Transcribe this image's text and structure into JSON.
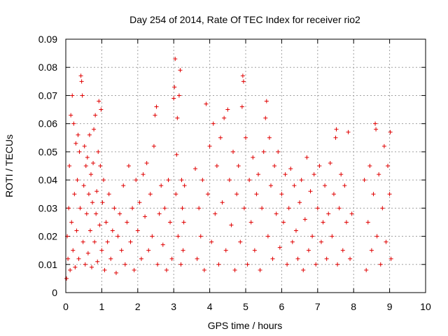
{
  "chart_data": {
    "type": "scatter",
    "title": "Day 254 of 2014, Rate Of TEC Index for receiver rio2",
    "xlabel": "GPS time / hours",
    "ylabel": "ROTI / TECUs",
    "xlim": [
      0,
      10
    ],
    "ylim": [
      0,
      0.09
    ],
    "x_ticks": [
      0,
      1,
      2,
      3,
      4,
      5,
      6,
      7,
      8,
      9,
      10
    ],
    "x_tick_labels": [
      "0",
      "1",
      "2",
      "3",
      "4",
      "5",
      "6",
      "7",
      "8",
      "9",
      "10"
    ],
    "y_ticks": [
      0,
      0.01,
      0.02,
      0.03,
      0.04,
      0.05,
      0.06,
      0.07,
      0.08,
      0.09
    ],
    "y_tick_labels": [
      "0",
      "0.01",
      "0.02",
      "0.03",
      "0.04",
      "0.05",
      "0.06",
      "0.07",
      "0.08",
      "0.09"
    ],
    "grid": true,
    "marker": "+",
    "color": "#e00000",
    "series": [
      {
        "name": "ROTI",
        "points": [
          [
            0.02,
            0.005
          ],
          [
            0.04,
            0.02
          ],
          [
            0.06,
            0.012
          ],
          [
            0.08,
            0.03
          ],
          [
            0.1,
            0.045
          ],
          [
            0.12,
            0.008
          ],
          [
            0.14,
            0.063
          ],
          [
            0.16,
            0.025
          ],
          [
            0.18,
            0.07
          ],
          [
            0.2,
            0.015
          ],
          [
            0.22,
            0.06
          ],
          [
            0.24,
            0.035
          ],
          [
            0.26,
            0.009
          ],
          [
            0.28,
            0.053
          ],
          [
            0.3,
            0.022
          ],
          [
            0.32,
            0.04
          ],
          [
            0.34,
            0.056
          ],
          [
            0.36,
            0.012
          ],
          [
            0.38,
            0.05
          ],
          [
            0.4,
            0.03
          ],
          [
            0.42,
            0.077
          ],
          [
            0.44,
            0.075
          ],
          [
            0.46,
            0.07
          ],
          [
            0.48,
            0.018
          ],
          [
            0.5,
            0.038
          ],
          [
            0.52,
            0.052
          ],
          [
            0.54,
            0.01
          ],
          [
            0.56,
            0.045
          ],
          [
            0.58,
            0.028
          ],
          [
            0.6,
            0.048
          ],
          [
            0.62,
            0.014
          ],
          [
            0.64,
            0.035
          ],
          [
            0.66,
            0.056
          ],
          [
            0.68,
            0.022
          ],
          [
            0.7,
            0.042
          ],
          [
            0.72,
            0.009
          ],
          [
            0.74,
            0.032
          ],
          [
            0.76,
            0.046
          ],
          [
            0.78,
            0.058
          ],
          [
            0.8,
            0.018
          ],
          [
            0.82,
            0.063
          ],
          [
            0.84,
            0.028
          ],
          [
            0.86,
            0.036
          ],
          [
            0.88,
            0.011
          ],
          [
            0.9,
            0.05
          ],
          [
            0.92,
            0.068
          ],
          [
            0.94,
            0.024
          ],
          [
            0.96,
            0.045
          ],
          [
            0.98,
            0.065
          ],
          [
            1.0,
            0.015
          ],
          [
            1.02,
            0.032
          ],
          [
            1.05,
            0.04
          ],
          [
            1.08,
            0.008
          ],
          [
            1.12,
            0.025
          ],
          [
            1.16,
            0.018
          ],
          [
            1.2,
            0.035
          ],
          [
            1.25,
            0.012
          ],
          [
            1.3,
            0.022
          ],
          [
            1.35,
            0.03
          ],
          [
            1.4,
            0.007
          ],
          [
            1.45,
            0.02
          ],
          [
            1.5,
            0.028
          ],
          [
            1.55,
            0.015
          ],
          [
            1.6,
            0.038
          ],
          [
            1.65,
            0.01
          ],
          [
            1.7,
            0.025
          ],
          [
            1.75,
            0.045
          ],
          [
            1.8,
            0.018
          ],
          [
            1.85,
            0.03
          ],
          [
            1.9,
            0.008
          ],
          [
            1.95,
            0.04
          ],
          [
            2.0,
            0.022
          ],
          [
            2.05,
            0.032
          ],
          [
            2.1,
            0.012
          ],
          [
            2.15,
            0.042
          ],
          [
            2.2,
            0.027
          ],
          [
            2.25,
            0.046
          ],
          [
            2.3,
            0.015
          ],
          [
            2.35,
            0.035
          ],
          [
            2.4,
            0.02
          ],
          [
            2.45,
            0.052
          ],
          [
            2.48,
            0.063
          ],
          [
            2.52,
            0.066
          ],
          [
            2.55,
            0.01
          ],
          [
            2.6,
            0.028
          ],
          [
            2.65,
            0.038
          ],
          [
            2.7,
            0.017
          ],
          [
            2.75,
            0.03
          ],
          [
            2.8,
            0.008
          ],
          [
            2.85,
            0.04
          ],
          [
            2.9,
            0.025
          ],
          [
            2.95,
            0.012
          ],
          [
            3.0,
            0.069
          ],
          [
            3.02,
            0.073
          ],
          [
            3.04,
            0.083
          ],
          [
            3.06,
            0.035
          ],
          [
            3.08,
            0.049
          ],
          [
            3.1,
            0.062
          ],
          [
            3.12,
            0.02
          ],
          [
            3.15,
            0.07
          ],
          [
            3.18,
            0.079
          ],
          [
            3.2,
            0.01
          ],
          [
            3.22,
            0.04
          ],
          [
            3.24,
            0.03
          ],
          [
            3.26,
            0.015
          ],
          [
            3.28,
            0.025
          ],
          [
            3.3,
            0.038
          ],
          [
            3.6,
            0.044
          ],
          [
            3.65,
            0.012
          ],
          [
            3.7,
            0.03
          ],
          [
            3.75,
            0.02
          ],
          [
            3.8,
            0.04
          ],
          [
            3.85,
            0.008
          ],
          [
            3.9,
            0.067
          ],
          [
            3.95,
            0.035
          ],
          [
            4.0,
            0.052
          ],
          [
            4.05,
            0.018
          ],
          [
            4.1,
            0.06
          ],
          [
            4.15,
            0.028
          ],
          [
            4.2,
            0.045
          ],
          [
            4.25,
            0.01
          ],
          [
            4.3,
            0.055
          ],
          [
            4.35,
            0.032
          ],
          [
            4.4,
            0.062
          ],
          [
            4.45,
            0.015
          ],
          [
            4.5,
            0.065
          ],
          [
            4.55,
            0.04
          ],
          [
            4.6,
            0.024
          ],
          [
            4.65,
            0.05
          ],
          [
            4.7,
            0.008
          ],
          [
            4.75,
            0.035
          ],
          [
            4.8,
            0.045
          ],
          [
            4.85,
            0.018
          ],
          [
            4.9,
            0.066
          ],
          [
            4.92,
            0.077
          ],
          [
            4.94,
            0.075
          ],
          [
            4.96,
            0.03
          ],
          [
            5.0,
            0.055
          ],
          [
            5.05,
            0.01
          ],
          [
            5.1,
            0.04
          ],
          [
            5.15,
            0.025
          ],
          [
            5.2,
            0.048
          ],
          [
            5.25,
            0.015
          ],
          [
            5.3,
            0.035
          ],
          [
            5.35,
            0.042
          ],
          [
            5.4,
            0.008
          ],
          [
            5.45,
            0.03
          ],
          [
            5.5,
            0.05
          ],
          [
            5.55,
            0.062
          ],
          [
            5.58,
            0.068
          ],
          [
            5.62,
            0.02
          ],
          [
            5.66,
            0.055
          ],
          [
            5.7,
            0.038
          ],
          [
            5.75,
            0.012
          ],
          [
            5.8,
            0.045
          ],
          [
            5.85,
            0.028
          ],
          [
            5.9,
            0.05
          ],
          [
            5.95,
            0.016
          ],
          [
            6.0,
            0.035
          ],
          [
            6.05,
            0.025
          ],
          [
            6.1,
            0.042
          ],
          [
            6.15,
            0.01
          ],
          [
            6.2,
            0.03
          ],
          [
            6.25,
            0.044
          ],
          [
            6.3,
            0.018
          ],
          [
            6.35,
            0.038
          ],
          [
            6.4,
            0.022
          ],
          [
            6.45,
            0.012
          ],
          [
            6.5,
            0.032
          ],
          [
            6.55,
            0.04
          ],
          [
            6.6,
            0.008
          ],
          [
            6.65,
            0.026
          ],
          [
            6.7,
            0.048
          ],
          [
            6.75,
            0.015
          ],
          [
            6.8,
            0.036
          ],
          [
            6.85,
            0.02
          ],
          [
            6.9,
            0.042
          ],
          [
            6.95,
            0.01
          ],
          [
            7.0,
            0.03
          ],
          [
            7.05,
            0.045
          ],
          [
            7.1,
            0.018
          ],
          [
            7.15,
            0.025
          ],
          [
            7.2,
            0.038
          ],
          [
            7.25,
            0.012
          ],
          [
            7.3,
            0.028
          ],
          [
            7.35,
            0.046
          ],
          [
            7.4,
            0.02
          ],
          [
            7.45,
            0.035
          ],
          [
            7.5,
            0.055
          ],
          [
            7.52,
            0.058
          ],
          [
            7.55,
            0.01
          ],
          [
            7.6,
            0.03
          ],
          [
            7.65,
            0.042
          ],
          [
            7.7,
            0.015
          ],
          [
            7.75,
            0.038
          ],
          [
            7.8,
            0.025
          ],
          [
            7.85,
            0.057
          ],
          [
            7.9,
            0.012
          ],
          [
            7.95,
            0.028
          ],
          [
            8.3,
            0.04
          ],
          [
            8.35,
            0.008
          ],
          [
            8.4,
            0.025
          ],
          [
            8.45,
            0.045
          ],
          [
            8.5,
            0.015
          ],
          [
            8.55,
            0.035
          ],
          [
            8.6,
            0.06
          ],
          [
            8.62,
            0.058
          ],
          [
            8.65,
            0.02
          ],
          [
            8.7,
            0.042
          ],
          [
            8.75,
            0.01
          ],
          [
            8.8,
            0.03
          ],
          [
            8.85,
            0.052
          ],
          [
            8.9,
            0.018
          ],
          [
            8.95,
            0.045
          ],
          [
            9.0,
            0.035
          ],
          [
            9.02,
            0.057
          ],
          [
            9.04,
            0.012
          ]
        ]
      }
    ]
  }
}
